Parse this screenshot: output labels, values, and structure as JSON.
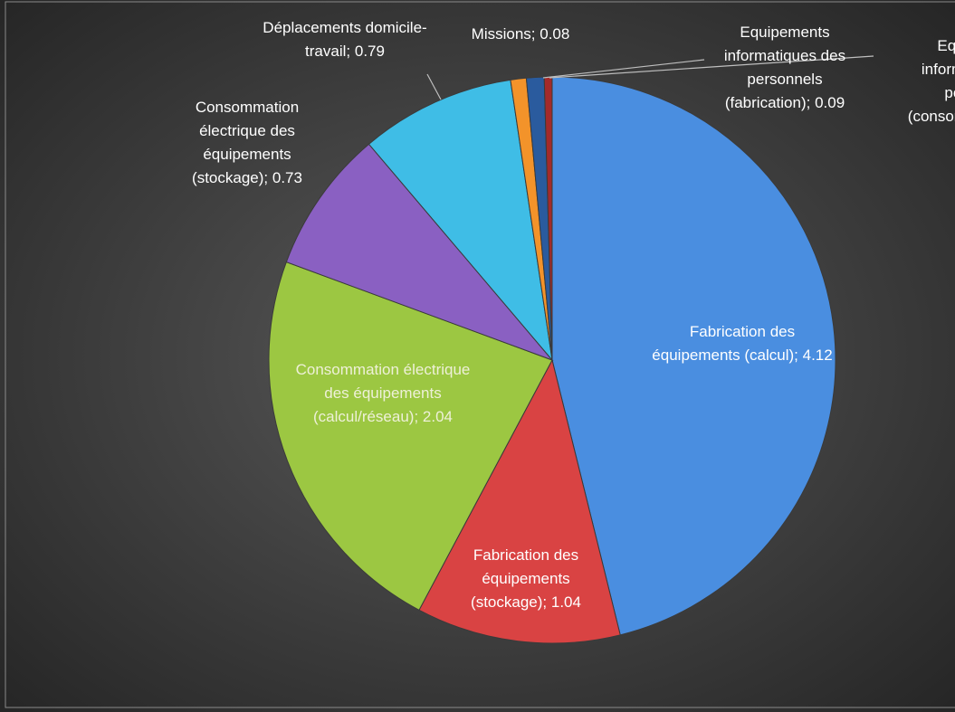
{
  "chart_data": {
    "type": "pie",
    "categories": [
      "Fabrication des équipements (calcul)",
      "Fabrication des équipements (stockage)",
      "Consommation électrique des équipements (calcul/réseau)",
      "Consommation électrique des équipements (stockage)",
      "Déplacements domicile-travail",
      "Missions",
      "Equipements informatiques des personnels (fabrication)",
      "Equipements informatiques des personnels (consommation)"
    ],
    "values": [
      4.12,
      1.04,
      2.04,
      0.73,
      0.79,
      0.08,
      0.09,
      0.04
    ],
    "label_separator": "; ",
    "colors": [
      "#4a8ee0",
      "#d94343",
      "#9cc742",
      "#8a60c2",
      "#3fbde6",
      "#f3932a",
      "#2a5b9e",
      "#a32a2a"
    ]
  }
}
